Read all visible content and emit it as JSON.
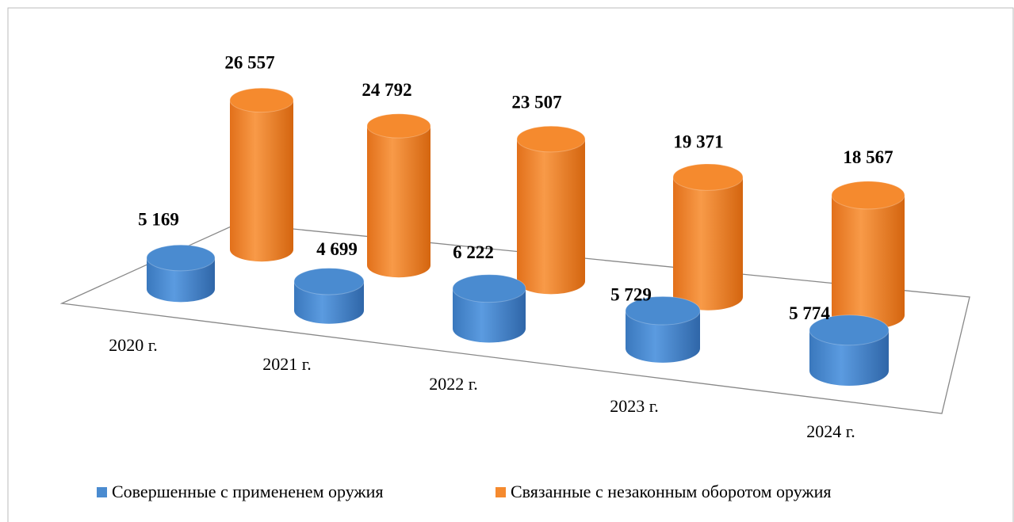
{
  "chart_data": {
    "type": "bar3d",
    "categories": [
      "2020 г.",
      "2021 г.",
      "2022 г.",
      "2023 г.",
      "2024 г."
    ],
    "series": [
      {
        "name": "Совершенные с примененем оружия",
        "color": "#4a8bd0",
        "values": [
          5169,
          4699,
          6222,
          5729,
          5774
        ],
        "value_labels": [
          "5 169",
          "4 699",
          "6 222",
          "5 729",
          "5 774"
        ]
      },
      {
        "name": "Связанные с незаконным оборотом оружия",
        "color": "#f58a2e",
        "values": [
          26557,
          24792,
          23507,
          19371,
          18567
        ],
        "value_labels": [
          "26 557",
          "24 792",
          "23 507",
          "19 371",
          "18 567"
        ]
      }
    ]
  }
}
